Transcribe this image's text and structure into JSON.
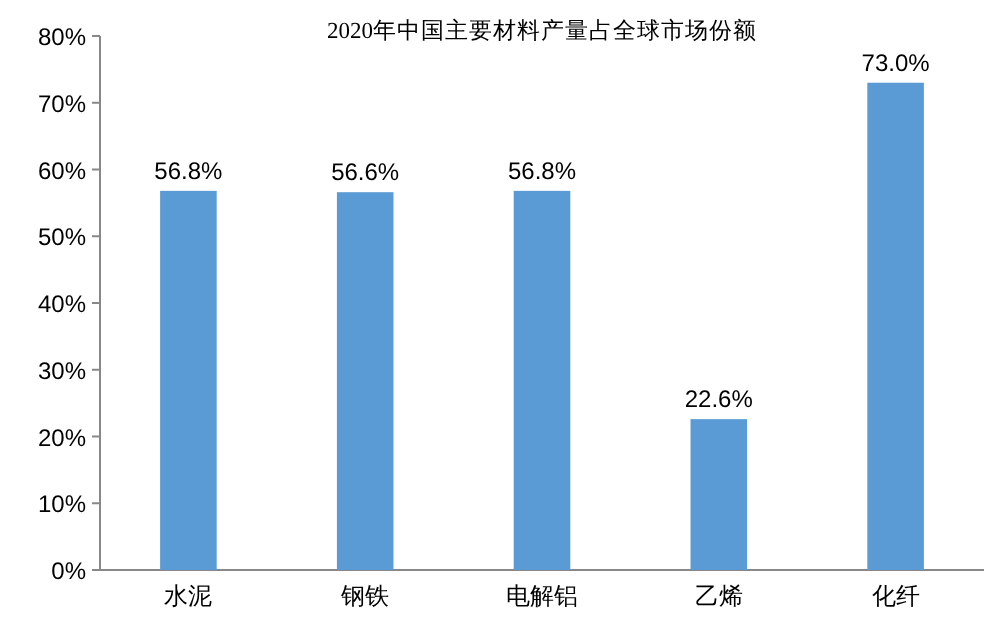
{
  "chart_data": {
    "type": "bar",
    "title": "2020年中国主要材料产量占全球市场份额",
    "categories": [
      "水泥",
      "钢铁",
      "电解铝",
      "乙烯",
      "化纤"
    ],
    "values": [
      56.8,
      56.6,
      56.8,
      22.6,
      73.0
    ],
    "value_labels": [
      "56.8%",
      "56.6%",
      "56.8%",
      "22.6%",
      "73.0%"
    ],
    "color": "#5b9bd5",
    "ylim": [
      0,
      80
    ],
    "yticks": [
      {
        "value": 0,
        "label": "0%"
      },
      {
        "value": 10,
        "label": "10%"
      },
      {
        "value": 20,
        "label": "20%"
      },
      {
        "value": 30,
        "label": "30%"
      },
      {
        "value": 40,
        "label": "40%"
      },
      {
        "value": 50,
        "label": "50%"
      },
      {
        "value": 60,
        "label": "60%"
      },
      {
        "value": 70,
        "label": "70%"
      },
      {
        "value": 80,
        "label": "80%"
      }
    ],
    "grid": false
  }
}
